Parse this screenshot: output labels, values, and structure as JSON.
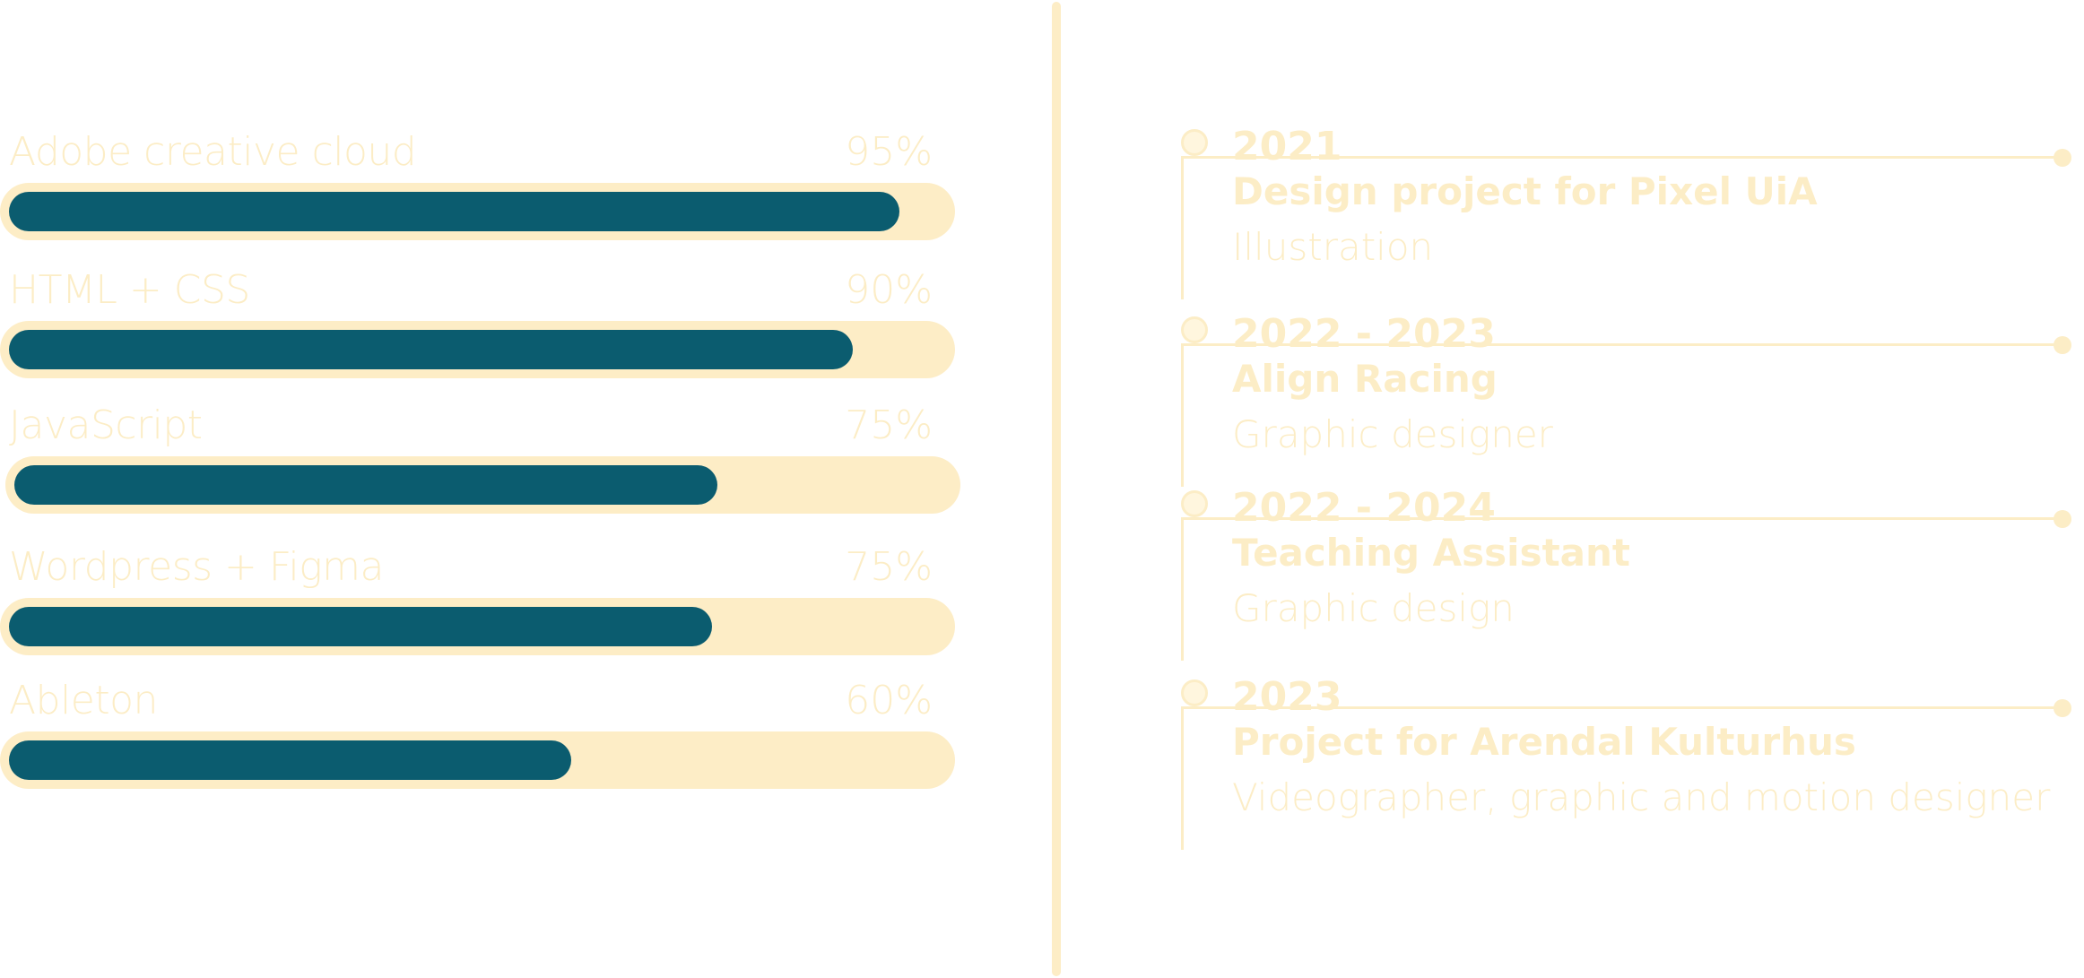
{
  "colors": {
    "cream": "#fdedc6",
    "teal": "#0b5c6f",
    "background": "#ffffff"
  },
  "skills": [
    {
      "name": "Adobe creative cloud",
      "percent_label": "95%",
      "level": 0.95
    },
    {
      "name": "HTML + CSS",
      "percent_label": "90%",
      "level": 0.9
    },
    {
      "name": "JavaScript",
      "percent_label": "75%",
      "level": 0.75
    },
    {
      "name": "Wordpress + Figma",
      "percent_label": "75%",
      "level": 0.75
    },
    {
      "name": "Ableton",
      "percent_label": "60%",
      "level": 0.6
    }
  ],
  "experience": [
    {
      "year": "2021",
      "title": "Design project for Pixel UiA",
      "role": "Illustration"
    },
    {
      "year": "2022 - 2023",
      "title": "Align Racing",
      "role": "Graphic designer"
    },
    {
      "year": "2022 - 2024",
      "title": "Teaching Assistant",
      "role": "Graphic design"
    },
    {
      "year": "2023",
      "title": "Project for Arendal Kulturhus",
      "role": "Videographer, graphic and motion designer"
    }
  ]
}
